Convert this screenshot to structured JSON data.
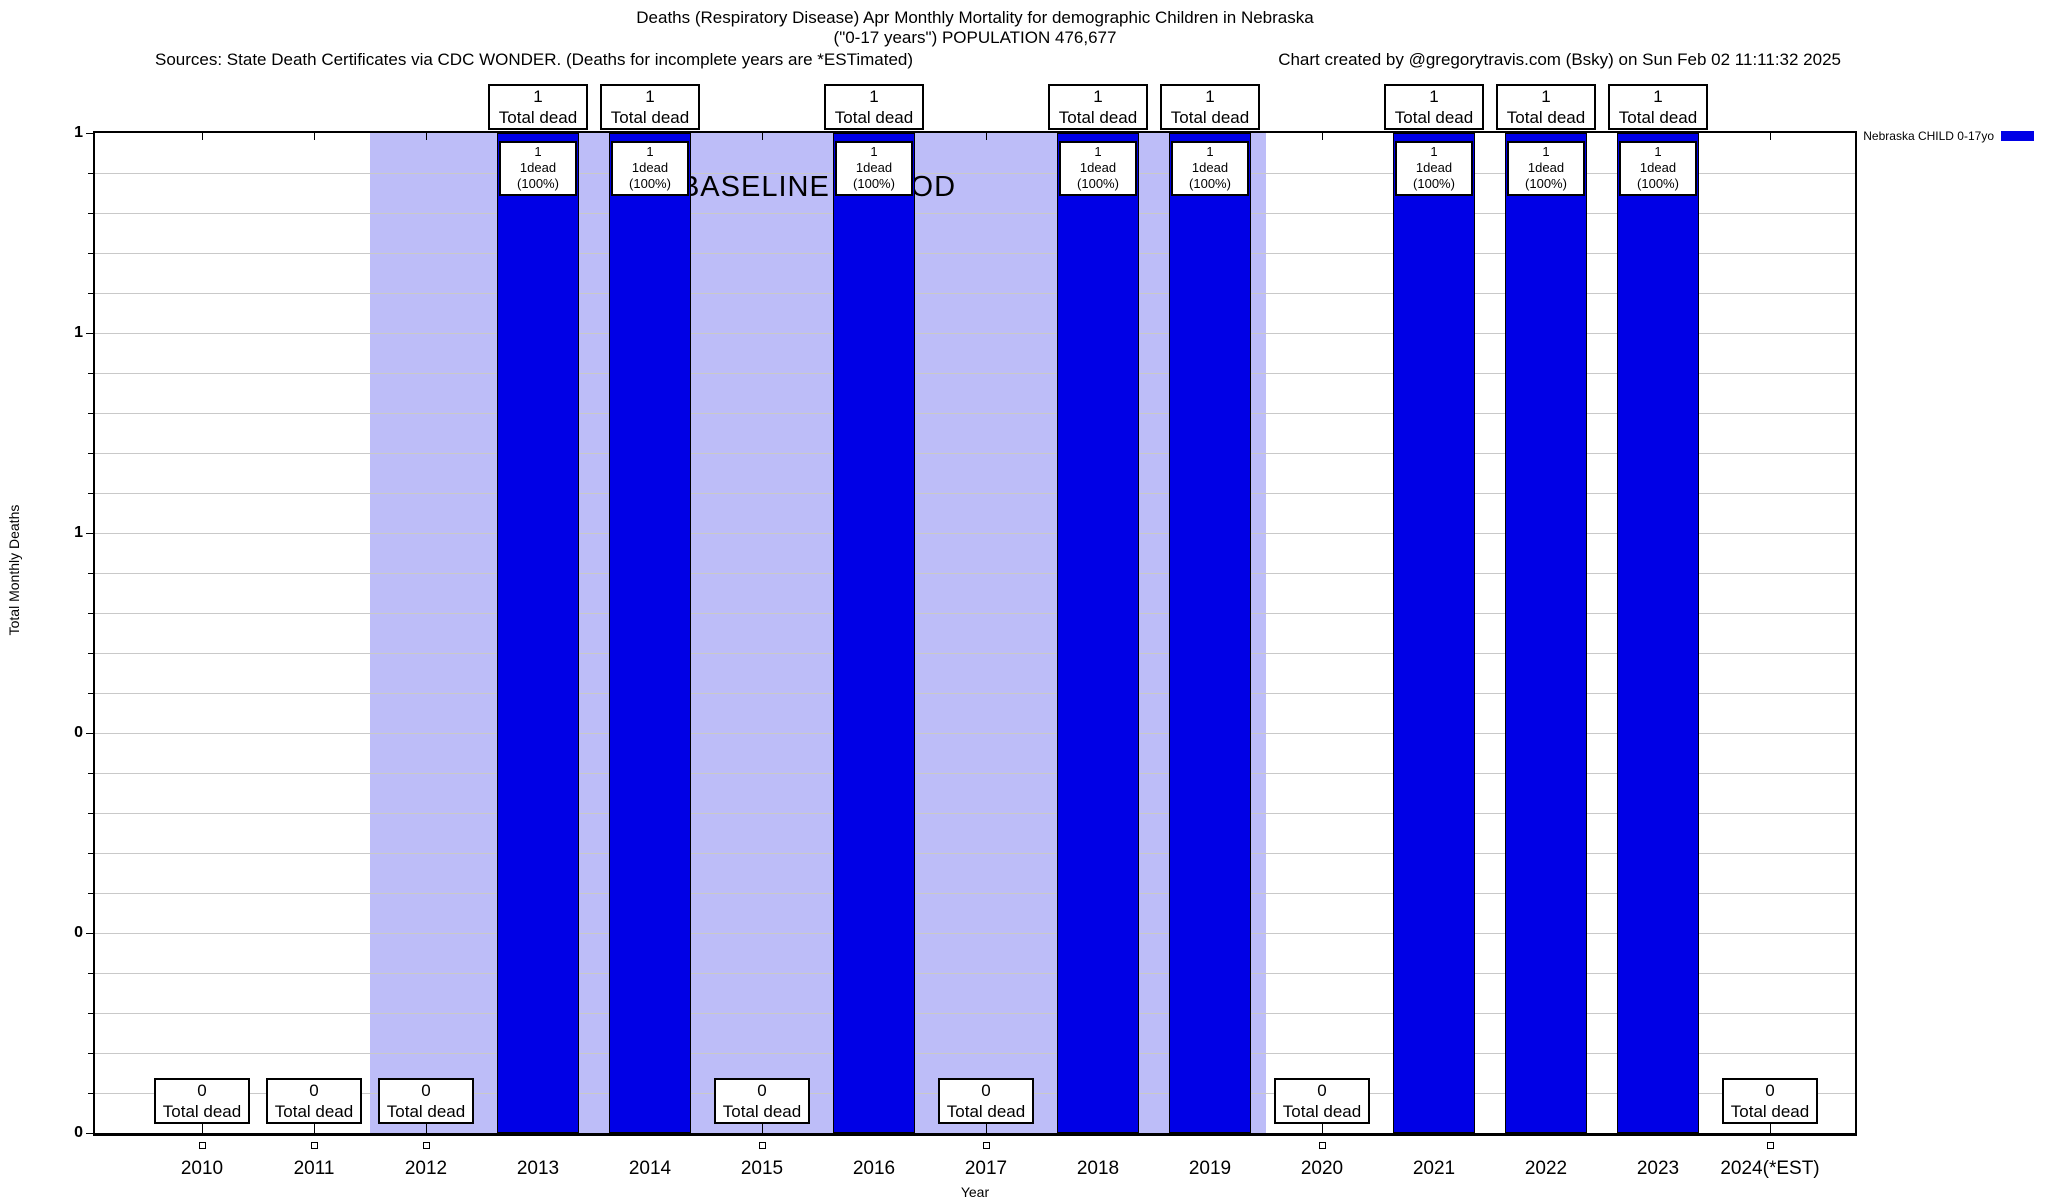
{
  "header": {
    "title": "Deaths (Respiratory Disease) Apr Monthly Mortality for demographic Children in Nebraska",
    "subtitle": "(\"0-17 years\") POPULATION 476,677",
    "sources_left": "Sources: State Death Certificates via CDC WONDER. (Deaths for incomplete years are *ESTimated)",
    "sources_right": "Chart created by @gregorytravis.com (Bsky) on Sun Feb 02 11:11:32 2025"
  },
  "legend": {
    "label": "Nebraska CHILD 0-17yo",
    "color": "#0000e6",
    "position": "top-right"
  },
  "chart_data": {
    "type": "bar",
    "title": "Deaths (Respiratory Disease) Apr Monthly Mortality for demographic Children in Nebraska",
    "subtitle": "(\"0-17 years\") POPULATION 476,677",
    "categories": [
      "2010",
      "2011",
      "2012",
      "2013",
      "2014",
      "2015",
      "2016",
      "2017",
      "2018",
      "2019",
      "2020",
      "2021",
      "2022",
      "2023",
      "2024(*EST)"
    ],
    "values": [
      0,
      0,
      0,
      1,
      1,
      0,
      1,
      0,
      1,
      1,
      0,
      1,
      1,
      1,
      0
    ],
    "series_name": "Nebraska CHILD 0-17yo",
    "xlabel": "Year",
    "ylabel": "Total Monthly Deaths",
    "ylim": [
      0,
      1
    ],
    "ytick_labels_top_to_bottom": [
      "1",
      "1",
      "1",
      "0",
      "0",
      "0"
    ],
    "grid": true,
    "bar_color": "#0000e6",
    "bar_value_box_label": "Total dead",
    "bar_inner_box_suffix": "dead (100%)",
    "zero_box_label": "Total dead",
    "baseline": {
      "label": "BASELINE PERIOD",
      "from_category": "2012",
      "to_category": "2019",
      "color": "#bdbdf8"
    }
  }
}
